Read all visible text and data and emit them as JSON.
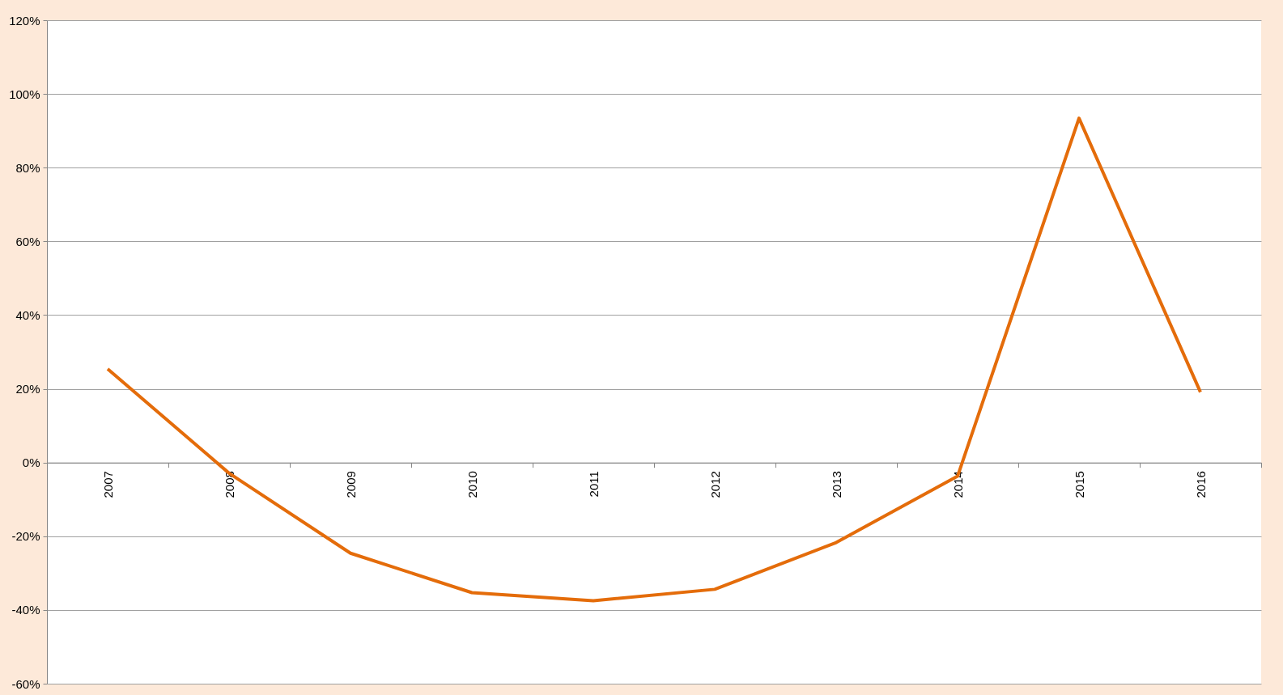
{
  "chart_data": {
    "type": "line",
    "categories": [
      "2007",
      "2008",
      "2009",
      "2010",
      "2011",
      "2012",
      "2013",
      "2014",
      "2015",
      "2016"
    ],
    "series": [
      {
        "color": "#e46c0a",
        "values": [
          25.4,
          -2.9,
          -24.6,
          -35.3,
          -37.5,
          -34.4,
          -21.7,
          -3.7,
          93.4,
          19.1
        ]
      }
    ],
    "ylim": [
      -60,
      120
    ],
    "yticks": [
      {
        "value": -60,
        "label": "-60%"
      },
      {
        "value": -40,
        "label": "-40%"
      },
      {
        "value": -20,
        "label": "-20%"
      },
      {
        "value": 0,
        "label": "0%"
      },
      {
        "value": 20,
        "label": "20%"
      },
      {
        "value": 40,
        "label": "40%"
      },
      {
        "value": 60,
        "label": "60%"
      },
      {
        "value": 80,
        "label": "80%"
      },
      {
        "value": 100,
        "label": "100%"
      },
      {
        "value": 120,
        "label": "120%"
      }
    ],
    "grid": "y",
    "marker": "none",
    "line_style": "solid"
  }
}
